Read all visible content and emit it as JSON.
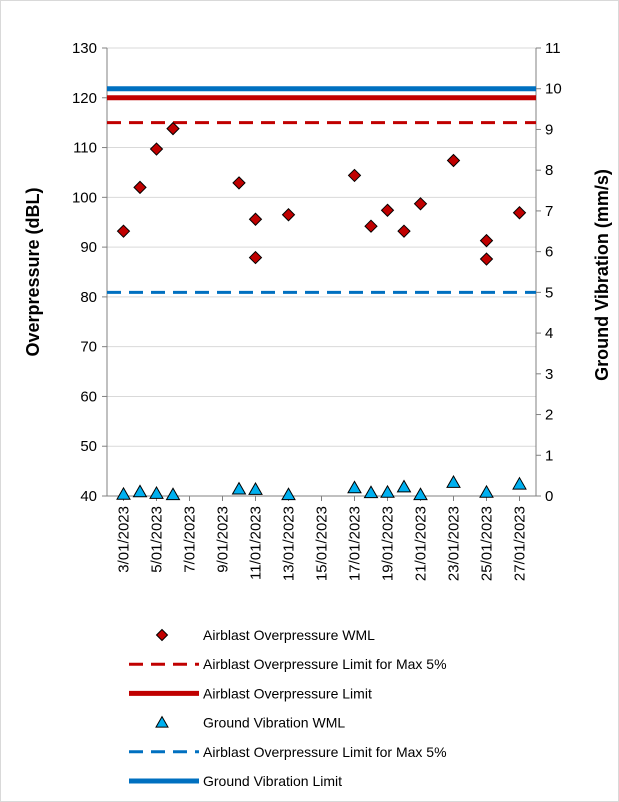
{
  "chart_data": {
    "type": "scatter",
    "title": "",
    "y_left": {
      "label": "Overpressure (dBL)",
      "ylim": [
        40,
        130
      ],
      "ticks": [
        40,
        50,
        60,
        70,
        80,
        90,
        100,
        110,
        120,
        130
      ]
    },
    "y_right": {
      "label": "Ground Vibration (mm/s)",
      "ylim": [
        0,
        11
      ],
      "ticks": [
        0,
        1,
        2,
        3,
        4,
        5,
        6,
        7,
        8,
        9,
        10,
        11
      ]
    },
    "x_axis": {
      "start": "2023-01-02",
      "end": "2023-01-28",
      "tick_labels": [
        "3/01/2023",
        "5/01/2023",
        "7/01/2023",
        "9/01/2023",
        "11/01/2023",
        "13/01/2023",
        "15/01/2023",
        "17/01/2023",
        "19/01/2023",
        "21/01/2023",
        "23/01/2023",
        "25/01/2023",
        "27/01/2023"
      ],
      "tick_dates": [
        "2023-01-03",
        "2023-01-05",
        "2023-01-07",
        "2023-01-09",
        "2023-01-11",
        "2023-01-13",
        "2023-01-15",
        "2023-01-17",
        "2023-01-19",
        "2023-01-21",
        "2023-01-23",
        "2023-01-25",
        "2023-01-27"
      ]
    },
    "gridlines": "horizontal",
    "legend_position": "bottom",
    "series": [
      {
        "name": "Airblast Overpressure WML",
        "kind": "scatter",
        "axis": "left",
        "marker": "diamond",
        "color": "#c00000",
        "points": [
          {
            "date": "2023-01-03",
            "value": 93.2
          },
          {
            "date": "2023-01-04",
            "value": 102.0
          },
          {
            "date": "2023-01-05",
            "value": 109.7
          },
          {
            "date": "2023-01-06",
            "value": 113.8
          },
          {
            "date": "2023-01-10",
            "value": 102.9
          },
          {
            "date": "2023-01-11",
            "value": 95.6
          },
          {
            "date": "2023-01-11",
            "value": 87.9
          },
          {
            "date": "2023-01-13",
            "value": 96.5
          },
          {
            "date": "2023-01-17",
            "value": 104.4
          },
          {
            "date": "2023-01-18",
            "value": 94.2
          },
          {
            "date": "2023-01-19",
            "value": 97.4
          },
          {
            "date": "2023-01-20",
            "value": 93.2
          },
          {
            "date": "2023-01-21",
            "value": 98.7
          },
          {
            "date": "2023-01-23",
            "value": 107.4
          },
          {
            "date": "2023-01-25",
            "value": 91.3
          },
          {
            "date": "2023-01-25",
            "value": 87.6
          },
          {
            "date": "2023-01-27",
            "value": 96.9
          }
        ]
      },
      {
        "name": "Airblast Overpressure Limit for Max 5%",
        "kind": "line",
        "axis": "left",
        "dash": true,
        "color": "#c00000",
        "value": 115
      },
      {
        "name": "Airblast Overpressure Limit",
        "kind": "line",
        "axis": "left",
        "dash": false,
        "color": "#c00000",
        "value": 120
      },
      {
        "name": "Ground Vibration WML",
        "kind": "scatter",
        "axis": "right",
        "marker": "triangle",
        "color": "#00b0f0",
        "points": [
          {
            "date": "2023-01-03",
            "value": 0.04
          },
          {
            "date": "2023-01-04",
            "value": 0.1
          },
          {
            "date": "2023-01-05",
            "value": 0.06
          },
          {
            "date": "2023-01-06",
            "value": 0.03
          },
          {
            "date": "2023-01-10",
            "value": 0.17
          },
          {
            "date": "2023-01-11",
            "value": 0.16
          },
          {
            "date": "2023-01-13",
            "value": 0.03
          },
          {
            "date": "2023-01-17",
            "value": 0.2
          },
          {
            "date": "2023-01-18",
            "value": 0.08
          },
          {
            "date": "2023-01-19",
            "value": 0.09
          },
          {
            "date": "2023-01-20",
            "value": 0.22
          },
          {
            "date": "2023-01-21",
            "value": 0.03
          },
          {
            "date": "2023-01-23",
            "value": 0.33
          },
          {
            "date": "2023-01-25",
            "value": 0.09
          },
          {
            "date": "2023-01-27",
            "value": 0.29
          }
        ]
      },
      {
        "name": "Airblast Overpressure Limit for Max 5%",
        "kind": "line",
        "axis": "right",
        "dash": true,
        "color": "#0070c0",
        "value": 5
      },
      {
        "name": "Ground Vibration Limit",
        "kind": "line",
        "axis": "right",
        "dash": false,
        "color": "#0070c0",
        "value": 10
      }
    ]
  }
}
